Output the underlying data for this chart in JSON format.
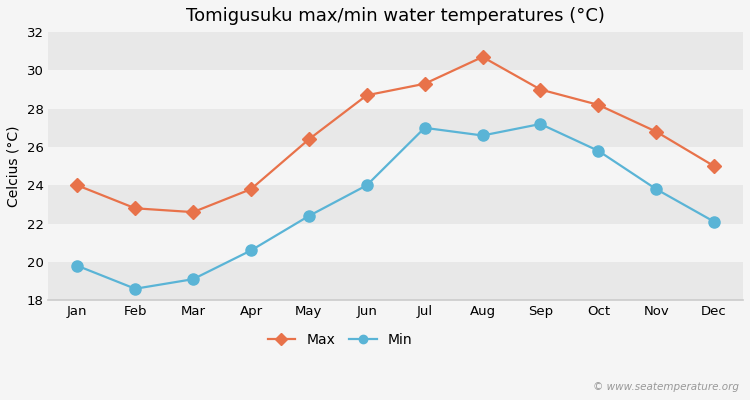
{
  "title": "Tomigusuku max/min water temperatures (°C)",
  "ylabel": "Celcius (°C)",
  "months": [
    "Jan",
    "Feb",
    "Mar",
    "Apr",
    "May",
    "Jun",
    "Jul",
    "Aug",
    "Sep",
    "Oct",
    "Nov",
    "Dec"
  ],
  "max_temps": [
    24.0,
    22.8,
    22.6,
    23.8,
    26.4,
    28.7,
    29.3,
    30.7,
    29.0,
    28.2,
    26.8,
    25.0
  ],
  "min_temps": [
    19.8,
    18.6,
    19.1,
    20.6,
    22.4,
    24.0,
    27.0,
    26.6,
    27.2,
    25.8,
    23.8,
    22.1
  ],
  "max_color": "#e8724a",
  "min_color": "#5ab4d6",
  "ylim": [
    18,
    32
  ],
  "yticks": [
    18,
    20,
    22,
    24,
    26,
    28,
    30,
    32
  ],
  "band_colors": [
    "#e8e8e8",
    "#f5f5f5"
  ],
  "spine_color": "#cccccc",
  "background_color": "#f5f5f5",
  "max_marker": "D",
  "min_marker": "o",
  "line_width": 1.6,
  "max_marker_size": 7,
  "min_marker_size": 8,
  "watermark": "© www.seatemperature.org",
  "title_fontsize": 13,
  "axis_label_fontsize": 10,
  "tick_fontsize": 9.5,
  "legend_fontsize": 10
}
